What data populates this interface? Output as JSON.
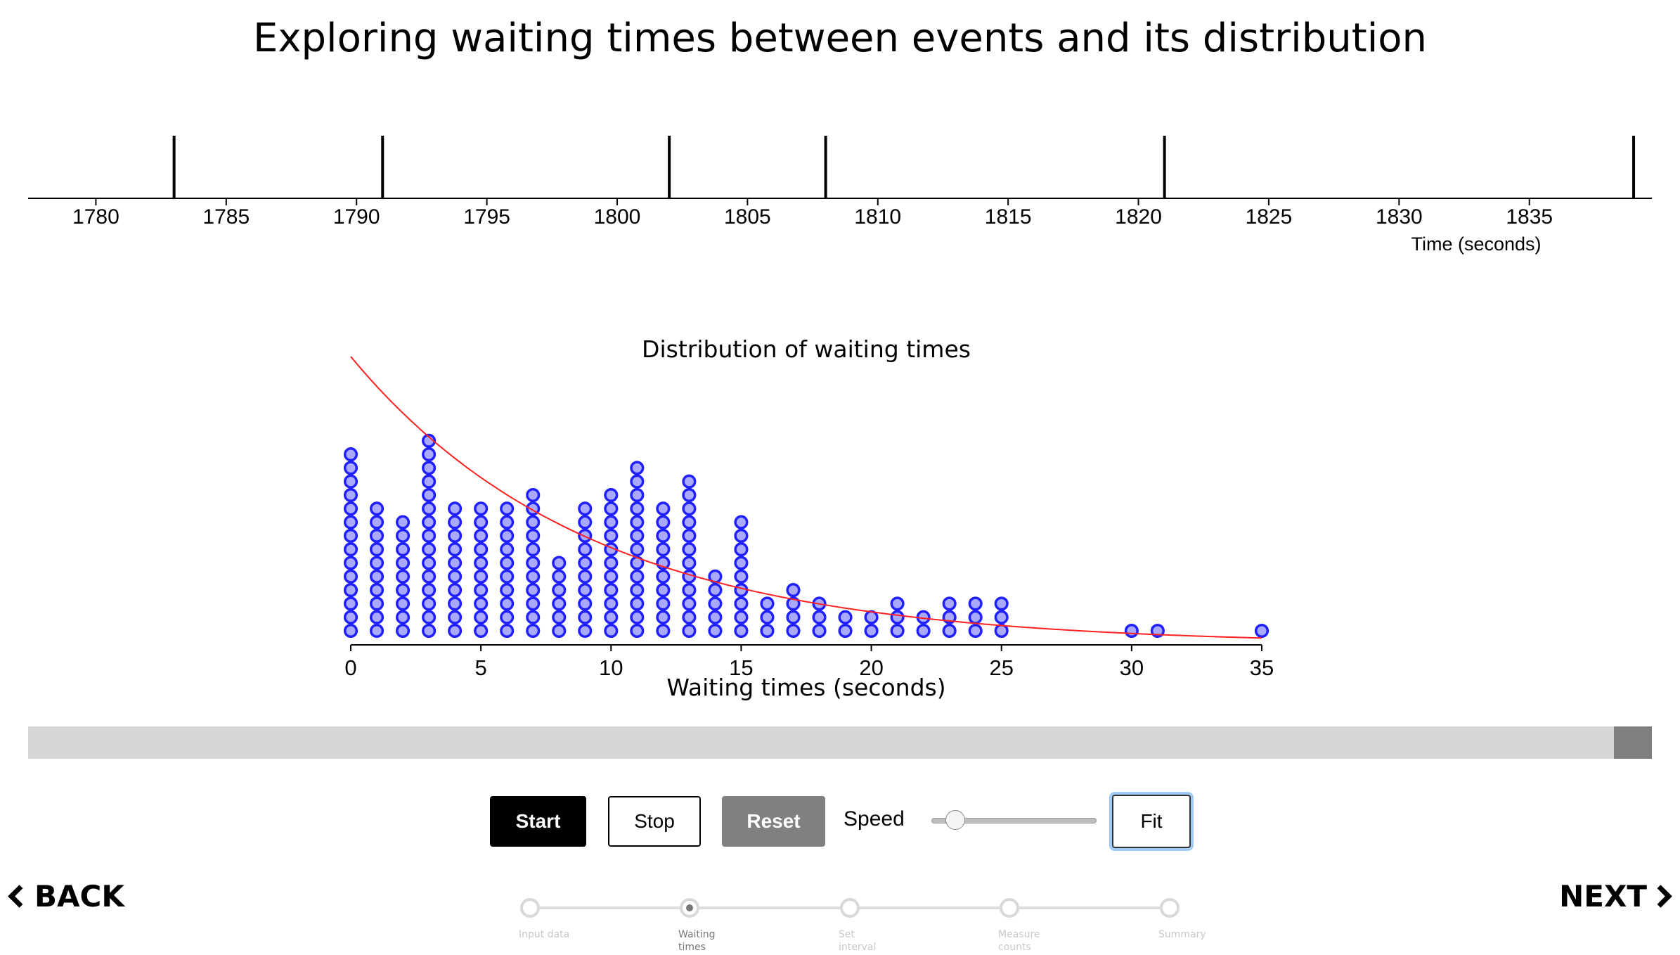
{
  "title": "Exploring waiting times between events and its distribution",
  "timeline": {
    "axis_label": "Time (seconds)",
    "xlim": [
      1777.4,
      1839.7
    ],
    "ticks": [
      1780,
      1785,
      1790,
      1795,
      1800,
      1805,
      1810,
      1815,
      1820,
      1825,
      1830,
      1835
    ],
    "events": [
      1783,
      1791,
      1802,
      1808,
      1821,
      1839
    ]
  },
  "chart_data": {
    "type": "scatter",
    "title": "Distribution of waiting times",
    "xlabel": "Waiting times (seconds)",
    "ylabel": "",
    "xlim": [
      0,
      35
    ],
    "xticks": [
      0,
      5,
      10,
      15,
      20,
      25,
      30,
      35
    ],
    "grid": false,
    "series": [
      {
        "kind": "dot-stack",
        "x": [
          0,
          1,
          2,
          3,
          4,
          5,
          6,
          7,
          8,
          9,
          10,
          11,
          12,
          13,
          14,
          15,
          16,
          17,
          18,
          19,
          20,
          21,
          22,
          23,
          24,
          25,
          30,
          31,
          35
        ],
        "counts": [
          14,
          10,
          9,
          15,
          10,
          10,
          10,
          11,
          6,
          10,
          11,
          13,
          10,
          12,
          5,
          9,
          3,
          4,
          3,
          2,
          2,
          3,
          2,
          3,
          3,
          3,
          1,
          1,
          1
        ],
        "color": "#1f1fff"
      },
      {
        "kind": "fitted-curve",
        "function": "exponential",
        "initial_count": 21.2,
        "decay_rate": 0.109,
        "color": "#ff2020"
      }
    ]
  },
  "progress": {
    "fraction": 1.0
  },
  "controls": {
    "start": "Start",
    "stop": "Stop",
    "reset": "Reset",
    "speed_label": "Speed",
    "speed_value": 0.05,
    "fit": "Fit"
  },
  "nav": {
    "back": "BACK",
    "next": "NEXT"
  },
  "steps": [
    {
      "label": "Input data",
      "active": false
    },
    {
      "label": "Waiting times",
      "active": true
    },
    {
      "label": "Set interval",
      "active": false
    },
    {
      "label": "Measure counts",
      "active": false
    },
    {
      "label": "Summary",
      "active": false
    }
  ]
}
